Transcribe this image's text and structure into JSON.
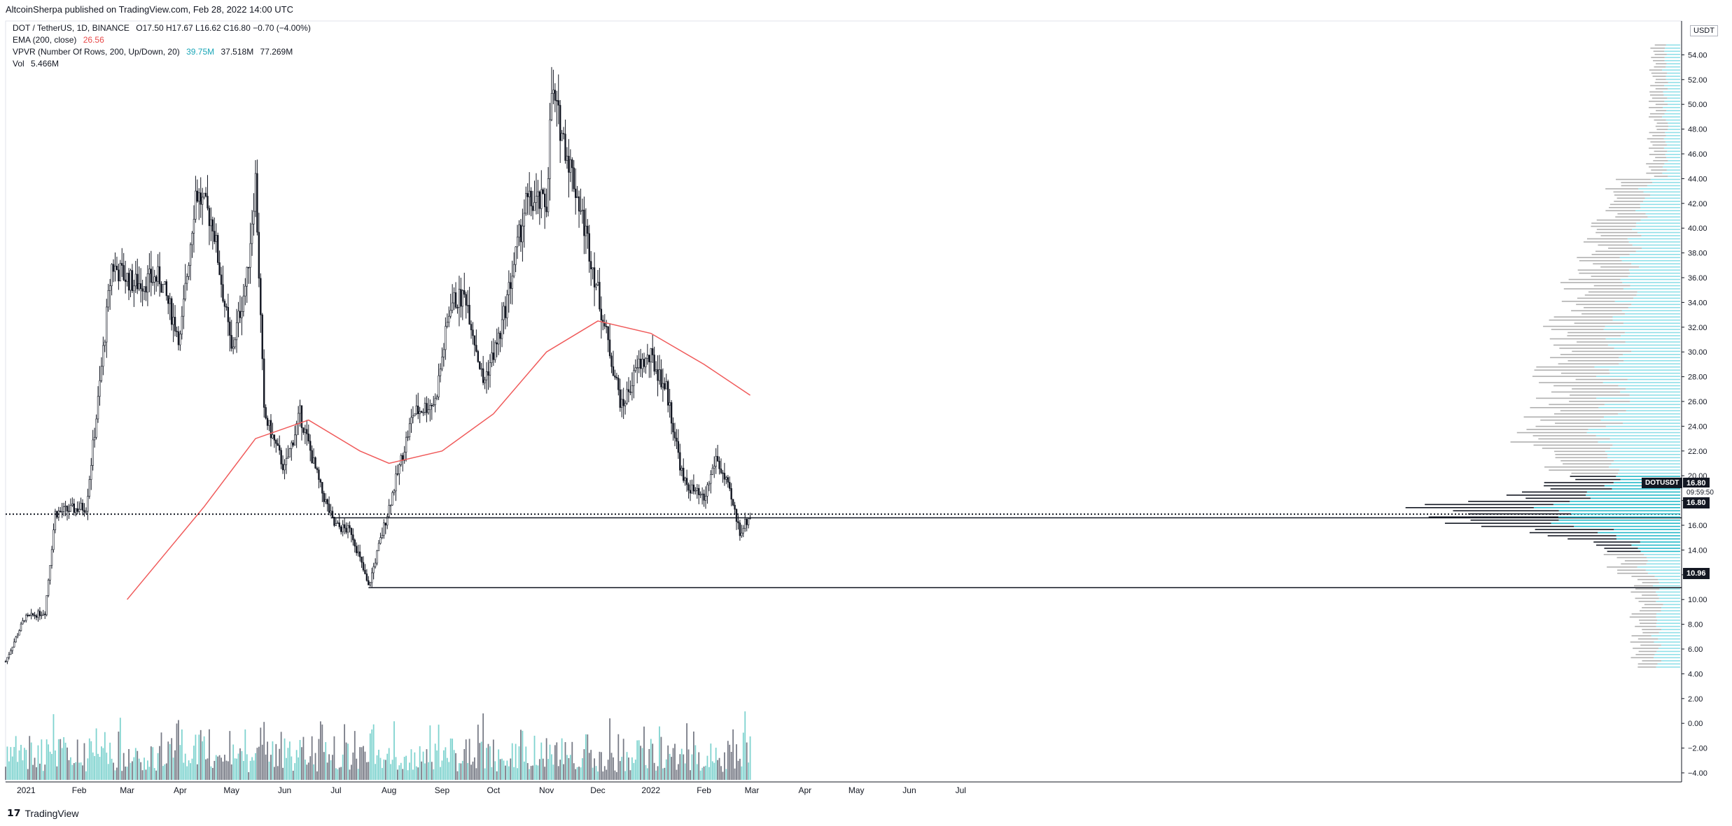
{
  "header": {
    "publish_text": "AltcoinSherpa published on TradingView.com, Feb 28, 2022 14:00 UTC"
  },
  "legend": {
    "symbol": "DOT / TetherUS, 1D, BINANCE",
    "ohlc": "O17.50 H17.67 L16.62 C16.80 −0.70 (−4.00%)",
    "ema_label": "EMA (200, close)",
    "ema_value": "26.56",
    "vpvr_label": "VPVR (Number Of Rows, 200, Up/Down, 20)",
    "vpvr_up": "39.75M",
    "vpvr_down": "37.518M",
    "vpvr_total": "77.269M",
    "vol_label": "Vol",
    "vol_value": "5.466M"
  },
  "price_axis": {
    "currency": "USDT",
    "symbol_tag": "DOTUSDT",
    "last_price": "16.80",
    "countdown": "09:59:50",
    "level_price": "10.96"
  },
  "footer": {
    "brand": "TradingView"
  },
  "colors": {
    "candle": "#131722",
    "ema": "#f05a5a",
    "vol_up": "#7fd3cf",
    "vol_down": "#787b86",
    "vp_up": "#8fdfe8",
    "vp_down": "#b0b0b0",
    "vp_poc_up": "#25b9c9",
    "vp_poc_down": "#131722"
  },
  "chart_data": {
    "type": "candlestick",
    "title": "DOT / TetherUS, 1D, BINANCE",
    "y_ticks": [
      "54.00",
      "52.00",
      "50.00",
      "48.00",
      "46.00",
      "44.00",
      "42.00",
      "40.00",
      "38.00",
      "36.00",
      "34.00",
      "32.00",
      "30.00",
      "28.00",
      "26.00",
      "24.00",
      "22.00",
      "20.00",
      "18.00",
      "16.00",
      "14.00",
      "12.00",
      "10.00",
      "8.00",
      "6.00",
      "4.00",
      "2.00",
      "0.00",
      "−2.00",
      "−4.00"
    ],
    "x_ticks": [
      "2021",
      "Feb",
      "Mar",
      "Apr",
      "May",
      "Jun",
      "Jul",
      "Aug",
      "Sep",
      "Oct",
      "Nov",
      "Dec",
      "2022",
      "Feb",
      "Mar",
      "Apr",
      "May",
      "Jun",
      "Jul"
    ],
    "ylim": [
      -5,
      55
    ],
    "price_anchors": [
      {
        "date": "2020-12-20",
        "price": 5.0
      },
      {
        "date": "2020-12-31",
        "price": 8.5
      },
      {
        "date": "2021-01-12",
        "price": 9.0
      },
      {
        "date": "2021-01-18",
        "price": 17.0
      },
      {
        "date": "2021-02-05",
        "price": 17.5
      },
      {
        "date": "2021-02-12",
        "price": 26.0
      },
      {
        "date": "2021-02-20",
        "price": 37.0
      },
      {
        "date": "2021-03-05",
        "price": 35.5
      },
      {
        "date": "2021-03-20",
        "price": 36.0
      },
      {
        "date": "2021-04-01",
        "price": 31.0
      },
      {
        "date": "2021-04-10",
        "price": 43.0
      },
      {
        "date": "2021-04-20",
        "price": 40.5
      },
      {
        "date": "2021-05-01",
        "price": 30.0
      },
      {
        "date": "2021-05-10",
        "price": 36.0
      },
      {
        "date": "2021-05-15",
        "price": 44.0
      },
      {
        "date": "2021-05-20",
        "price": 25.0
      },
      {
        "date": "2021-06-01",
        "price": 20.5
      },
      {
        "date": "2021-06-10",
        "price": 25.0
      },
      {
        "date": "2021-06-22",
        "price": 19.0
      },
      {
        "date": "2021-06-30",
        "price": 16.0
      },
      {
        "date": "2021-07-10",
        "price": 15.5
      },
      {
        "date": "2021-07-20",
        "price": 11.0
      },
      {
        "date": "2021-08-01",
        "price": 17.5
      },
      {
        "date": "2021-08-15",
        "price": 25.0
      },
      {
        "date": "2021-08-28",
        "price": 26.0
      },
      {
        "date": "2021-09-06",
        "price": 34.0
      },
      {
        "date": "2021-09-15",
        "price": 34.5
      },
      {
        "date": "2021-09-25",
        "price": 27.5
      },
      {
        "date": "2021-10-05",
        "price": 31.5
      },
      {
        "date": "2021-10-20",
        "price": 42.0
      },
      {
        "date": "2021-11-01",
        "price": 42.0
      },
      {
        "date": "2021-11-04",
        "price": 51.0
      },
      {
        "date": "2021-11-15",
        "price": 45.0
      },
      {
        "date": "2021-11-25",
        "price": 39.0
      },
      {
        "date": "2021-12-05",
        "price": 32.0
      },
      {
        "date": "2021-12-15",
        "price": 25.5
      },
      {
        "date": "2021-12-25",
        "price": 29.0
      },
      {
        "date": "2022-01-01",
        "price": 29.5
      },
      {
        "date": "2022-01-10",
        "price": 27.0
      },
      {
        "date": "2022-01-20",
        "price": 19.5
      },
      {
        "date": "2022-02-01",
        "price": 18.0
      },
      {
        "date": "2022-02-08",
        "price": 21.5
      },
      {
        "date": "2022-02-15",
        "price": 19.0
      },
      {
        "date": "2022-02-22",
        "price": 15.5
      },
      {
        "date": "2022-02-28",
        "price": 16.8
      }
    ],
    "ema_200": [
      {
        "date": "2021-03-01",
        "price": 10.0
      },
      {
        "date": "2021-04-15",
        "price": 17.5
      },
      {
        "date": "2021-05-15",
        "price": 23.0
      },
      {
        "date": "2021-06-15",
        "price": 24.5
      },
      {
        "date": "2021-07-15",
        "price": 22.0
      },
      {
        "date": "2021-08-01",
        "price": 21.0
      },
      {
        "date": "2021-09-01",
        "price": 22.0
      },
      {
        "date": "2021-10-01",
        "price": 25.0
      },
      {
        "date": "2021-11-01",
        "price": 30.0
      },
      {
        "date": "2021-12-01",
        "price": 32.5
      },
      {
        "date": "2022-01-01",
        "price": 31.5
      },
      {
        "date": "2022-02-01",
        "price": 29.0
      },
      {
        "date": "2022-02-28",
        "price": 26.5
      }
    ],
    "horizontal_lines": [
      {
        "price": 16.9,
        "style": "dotted"
      },
      {
        "price": 16.6,
        "style": "solid"
      },
      {
        "price": 10.96,
        "style": "solid"
      }
    ],
    "volume_profile": {
      "x_end": "2022-08-10",
      "price_min": 4.5,
      "price_max": 55,
      "poc_price": 16.8
    }
  }
}
